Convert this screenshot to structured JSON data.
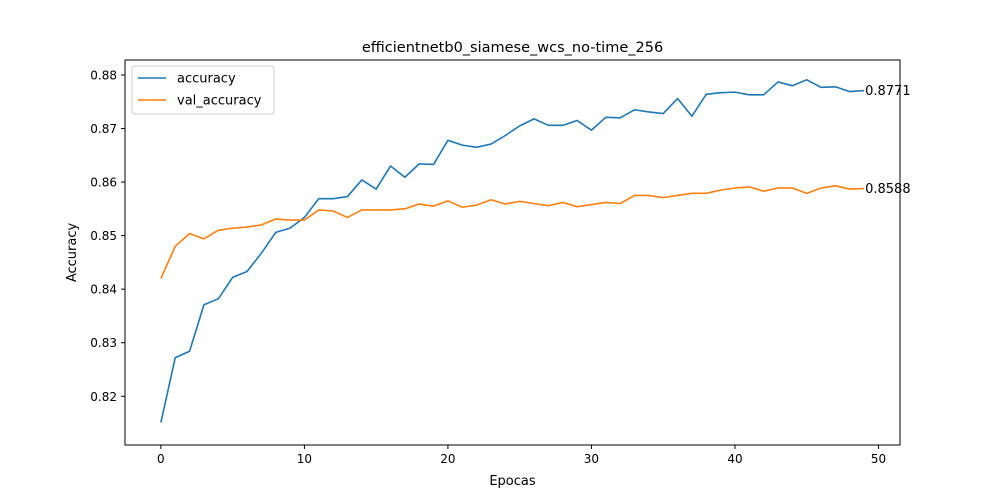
{
  "chart_data": {
    "type": "line",
    "title": "efficientnetb0_siamese_wcs_no-time_256",
    "xlabel": "Epocas",
    "ylabel": "Accuracy",
    "xlim": [
      -2.5,
      51.5
    ],
    "ylim": [
      0.8109,
      0.8828
    ],
    "xticks": [
      0,
      10,
      20,
      30,
      40,
      50
    ],
    "xtick_labels": [
      "0",
      "10",
      "20",
      "30",
      "40",
      "50"
    ],
    "yticks": [
      0.82,
      0.83,
      0.84,
      0.85,
      0.86,
      0.87,
      0.88
    ],
    "ytick_labels": [
      "0.82",
      "0.83",
      "0.84",
      "0.85",
      "0.86",
      "0.87",
      "0.88"
    ],
    "grid": false,
    "legend_position": "top-left",
    "x": [
      0,
      1,
      2,
      3,
      4,
      5,
      6,
      7,
      8,
      9,
      10,
      11,
      12,
      13,
      14,
      15,
      16,
      17,
      18,
      19,
      20,
      21,
      22,
      23,
      24,
      25,
      26,
      27,
      28,
      29,
      30,
      31,
      32,
      33,
      34,
      35,
      36,
      37,
      38,
      39,
      40,
      41,
      42,
      43,
      44,
      45,
      46,
      47,
      48,
      49
    ],
    "series": [
      {
        "name": "accuracy",
        "color": "#1f77b4",
        "end_label": "0.8771",
        "values": [
          0.8151,
          0.8272,
          0.8284,
          0.8371,
          0.8382,
          0.8422,
          0.8433,
          0.8467,
          0.8506,
          0.8514,
          0.8534,
          0.8569,
          0.8569,
          0.8573,
          0.8604,
          0.8587,
          0.863,
          0.8609,
          0.8634,
          0.8633,
          0.8678,
          0.8669,
          0.8665,
          0.8671,
          0.8687,
          0.8705,
          0.8718,
          0.8706,
          0.8706,
          0.8715,
          0.8697,
          0.8721,
          0.872,
          0.8735,
          0.8731,
          0.8728,
          0.8756,
          0.8723,
          0.8764,
          0.8767,
          0.8768,
          0.8763,
          0.8763,
          0.8787,
          0.878,
          0.8791,
          0.8777,
          0.8778,
          0.8769,
          0.8771
        ]
      },
      {
        "name": "val_accuracy",
        "color": "#ff7f0e",
        "end_label": "0.8588",
        "values": [
          0.842,
          0.848,
          0.8504,
          0.8494,
          0.851,
          0.8514,
          0.8516,
          0.852,
          0.8531,
          0.8529,
          0.8529,
          0.8548,
          0.8546,
          0.8534,
          0.8548,
          0.8548,
          0.8548,
          0.855,
          0.8559,
          0.8555,
          0.8565,
          0.8553,
          0.8557,
          0.8567,
          0.8559,
          0.8564,
          0.856,
          0.8556,
          0.8562,
          0.8554,
          0.8558,
          0.8562,
          0.856,
          0.8575,
          0.8575,
          0.8571,
          0.8575,
          0.8579,
          0.8579,
          0.8585,
          0.8589,
          0.8591,
          0.8583,
          0.8589,
          0.8589,
          0.8579,
          0.8589,
          0.8593,
          0.8587,
          0.8588
        ]
      }
    ]
  }
}
